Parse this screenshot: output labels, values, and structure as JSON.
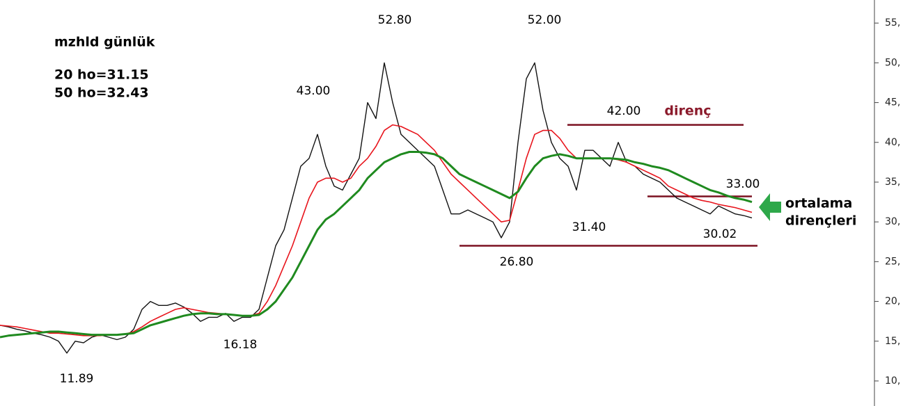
{
  "chart_data": {
    "type": "line",
    "title": "mzhld günlük",
    "subtitle_lines": [
      "20 ho=31.15",
      "50 ho=32.43"
    ],
    "annotations": [
      "52.80",
      "52.00",
      "43.00",
      "42.00",
      "direnç",
      "33.00",
      "31.40",
      "30.02",
      "26.80",
      "16.18",
      "11.89",
      "ortalama",
      "dirençleri"
    ],
    "ylim": [
      6.85,
      57.9
    ],
    "yticks": [
      {
        "value": 55,
        "label": "55,"
      },
      {
        "value": 50,
        "label": "50,"
      },
      {
        "value": 45,
        "label": "45,"
      },
      {
        "value": 40,
        "label": "40,"
      },
      {
        "value": 35,
        "label": "35,"
      },
      {
        "value": 30,
        "label": "30,"
      },
      {
        "value": 25,
        "label": "25,"
      },
      {
        "value": 20,
        "label": "20,"
      },
      {
        "value": 15,
        "label": "15,"
      },
      {
        "value": 10,
        "label": "10,"
      }
    ],
    "hlines": [
      {
        "value": 42.2,
        "color": "#7b1020"
      },
      {
        "value": 33.2,
        "color": "#7b1020"
      },
      {
        "value": 27.0,
        "color": "#7b1020"
      }
    ],
    "series": [
      {
        "color": "#111111",
        "values": [
          17,
          16.8,
          16.5,
          16.3,
          16,
          15.8,
          15.5,
          15,
          13.5,
          15,
          14.8,
          15.5,
          15.8,
          15.5,
          15.2,
          15.5,
          16.5,
          19,
          20,
          19.5,
          19.5,
          19.8,
          19.3,
          18.5,
          17.5,
          18,
          18,
          18.5,
          17.5,
          18,
          18,
          19,
          23,
          27,
          29,
          33,
          37,
          38,
          41,
          37,
          34.5,
          34,
          36,
          38,
          45,
          43,
          50,
          45,
          41,
          40,
          39,
          38,
          37,
          34,
          31,
          31,
          31.5,
          31,
          30.5,
          30,
          28,
          30,
          40,
          48,
          50,
          44,
          40,
          38,
          37,
          34,
          39,
          39,
          38,
          37,
          40,
          37.5,
          37,
          36,
          35.5,
          35,
          34,
          33,
          32.5,
          32,
          31.5,
          31,
          32,
          31.5,
          31,
          30.8,
          30.5
        ]
      },
      {
        "color": "#e8141c",
        "values": [
          17,
          16.9,
          16.8,
          16.6,
          16.4,
          16.2,
          16,
          16,
          15.9,
          15.8,
          15.7,
          15.7,
          15.7,
          15.8,
          15.8,
          15.9,
          16.2,
          16.8,
          17.5,
          18,
          18.5,
          19,
          19.2,
          19,
          18.8,
          18.6,
          18.5,
          18.4,
          18.3,
          18.2,
          18.2,
          18.5,
          20,
          22,
          24.5,
          27,
          30,
          33,
          35,
          35.5,
          35.5,
          35,
          35.5,
          37,
          38,
          39.5,
          41.5,
          42.2,
          42,
          41.5,
          41,
          40,
          39,
          37.5,
          36,
          35,
          34,
          33,
          32,
          31,
          30,
          30.2,
          34,
          38,
          41,
          41.5,
          41.5,
          40.5,
          39,
          38,
          38,
          38,
          38,
          38,
          37.8,
          37.5,
          37,
          36.5,
          36,
          35.5,
          34.5,
          34,
          33.5,
          33,
          32.7,
          32.5,
          32.2,
          32,
          31.8,
          31.5,
          31.2
        ]
      },
      {
        "color": "#1f8a1f",
        "values": [
          15.5,
          15.7,
          15.8,
          15.9,
          16,
          16.1,
          16.2,
          16.2,
          16.1,
          16,
          15.9,
          15.8,
          15.8,
          15.8,
          15.8,
          15.9,
          16,
          16.5,
          17,
          17.3,
          17.6,
          17.9,
          18.2,
          18.4,
          18.5,
          18.5,
          18.4,
          18.4,
          18.3,
          18.2,
          18.2,
          18.3,
          19,
          20,
          21.5,
          23,
          25,
          27,
          29,
          30.3,
          31,
          32,
          33,
          34,
          35.5,
          36.5,
          37.5,
          38,
          38.5,
          38.8,
          38.8,
          38.7,
          38.5,
          38,
          37,
          36,
          35.5,
          35,
          34.5,
          34,
          33.5,
          33,
          33.8,
          35.5,
          37,
          38,
          38.3,
          38.5,
          38.3,
          38,
          38,
          38,
          38,
          38,
          37.9,
          37.8,
          37.5,
          37.3,
          37,
          36.8,
          36.5,
          36,
          35.5,
          35,
          34.5,
          34,
          33.7,
          33.3,
          33,
          32.8,
          32.5
        ]
      }
    ]
  }
}
